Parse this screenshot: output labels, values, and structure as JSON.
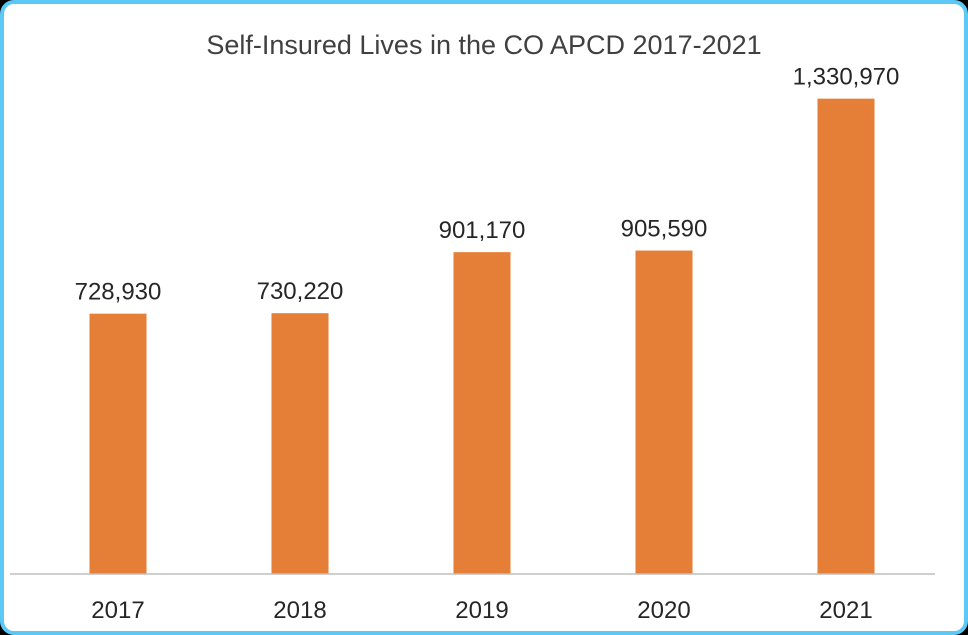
{
  "chart_data": {
    "type": "bar",
    "title": "Self-Insured Lives in the CO APCD 2017-2021",
    "categories": [
      "2017",
      "2018",
      "2019",
      "2020",
      "2021"
    ],
    "values": [
      728930,
      730220,
      901170,
      905590,
      1330970
    ],
    "data_labels": [
      "728,930",
      "730,220",
      "901,170",
      "905,590",
      "1,330,970"
    ],
    "xlabel": "",
    "ylabel": "",
    "ylim": [
      0,
      1400000
    ],
    "grid": false,
    "legend": "none",
    "colors": {
      "bar": "#e57e36",
      "frame": "#5bc8f5",
      "axis": "#bfbfbf",
      "text": "#262626",
      "title": "#404040"
    }
  }
}
